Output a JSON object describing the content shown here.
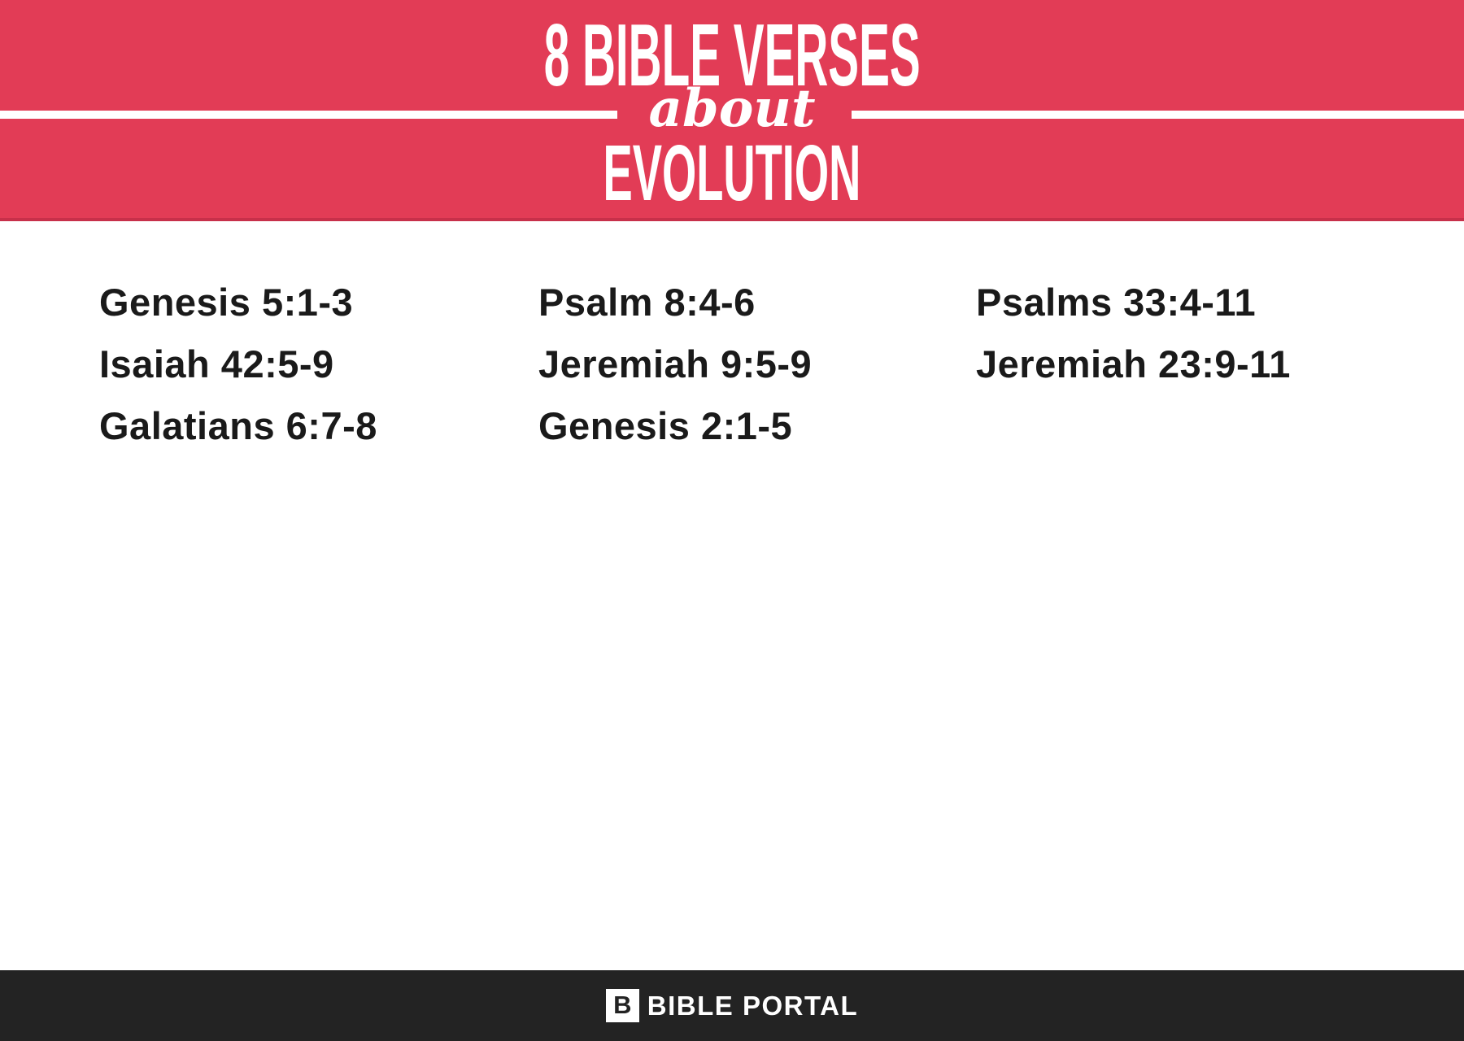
{
  "banner": {
    "count_title": "8 BIBLE VERSES",
    "connector": "about",
    "topic_title": "EVOLUTION",
    "bg_color": "#e23c56",
    "text_color": "#ffffff"
  },
  "verses": {
    "columns": [
      [
        "Genesis 5:1-3",
        "Isaiah 42:5-9",
        "Galatians 6:7-8"
      ],
      [
        "Psalm 8:4-6",
        "Jeremiah 9:5-9",
        "Genesis 2:1-5"
      ],
      [
        "Psalms 33:4-11",
        "Jeremiah 23:9-11"
      ]
    ],
    "text_color": "#1a1a1a"
  },
  "footer": {
    "logo_letter": "B",
    "brand": "BIBLE PORTAL",
    "bg_color": "#232323"
  }
}
